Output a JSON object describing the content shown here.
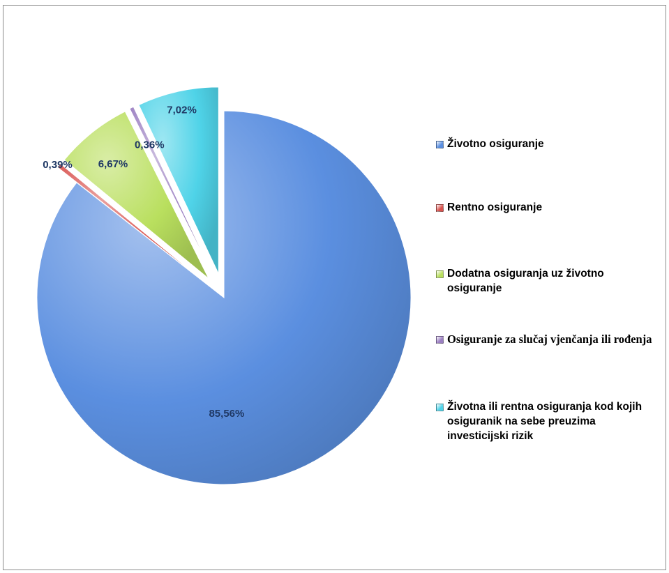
{
  "chart_data": {
    "type": "pie",
    "title": "",
    "slices": [
      {
        "label": "Životno osiguranje",
        "value": 85.56,
        "display": "85,56%",
        "color": "#5b8fe0",
        "exploded": false
      },
      {
        "label": "Rentno osiguranje",
        "value": 0.39,
        "display": "0,39%",
        "color": "#d9534f",
        "exploded": true
      },
      {
        "label": "Dodatna osiguranja uz životno osiguranje",
        "value": 6.67,
        "display": "6,67%",
        "color": "#b9df5e",
        "exploded": true
      },
      {
        "label": "Osiguranje za slučaj vjenčanja ili rođenja",
        "value": 0.36,
        "display": "0,36%",
        "color": "#9b7fc2",
        "exploded": true
      },
      {
        "label": "Životna ili rentna osiguranja kod kojih osiguranik na sebe preuzima investicijski rizik",
        "value": 7.02,
        "display": "7,02%",
        "color": "#4fd3e8",
        "exploded": true
      }
    ],
    "legend_position": "right",
    "label_color": "#1f3864"
  },
  "legend": [
    {
      "label": "Životno osiguranje",
      "color": "#5b8fe0"
    },
    {
      "label": "Rentno osiguranje",
      "color": "#d9534f"
    },
    {
      "label": "Dodatna osiguranja uz životno osiguranje",
      "color": "#b9df5e"
    },
    {
      "label": "Osiguranje za slučaj vjenčanja ili rođenja",
      "color": "#9b7fc2"
    },
    {
      "label": "Životna ili rentna osiguranja kod kojih osiguranik na sebe preuzima investicijski rizik",
      "color": "#4fd3e8"
    }
  ]
}
